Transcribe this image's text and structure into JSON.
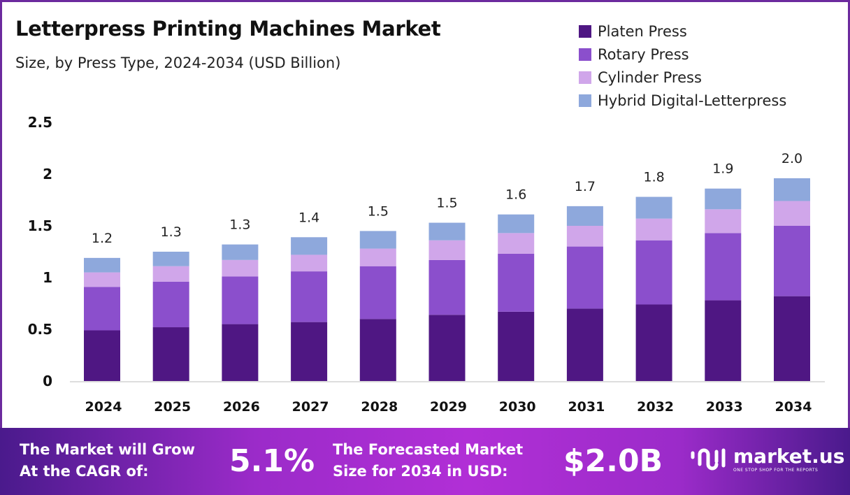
{
  "chart_data": {
    "type": "bar",
    "stacked": true,
    "title": "Letterpress Printing Machines Market",
    "subtitle": "Size, by Press Type, 2024-2034 (USD Billion)",
    "categories": [
      "2024",
      "2025",
      "2026",
      "2027",
      "2028",
      "2029",
      "2030",
      "2031",
      "2032",
      "2033",
      "2034"
    ],
    "series": [
      {
        "name": "Platen Press",
        "color": "#4f1783",
        "values": [
          0.49,
          0.52,
          0.55,
          0.57,
          0.6,
          0.64,
          0.67,
          0.7,
          0.74,
          0.78,
          0.82
        ]
      },
      {
        "name": "Rotary Press",
        "color": "#8b4fcc",
        "values": [
          0.42,
          0.44,
          0.46,
          0.49,
          0.51,
          0.53,
          0.56,
          0.6,
          0.62,
          0.65,
          0.68
        ]
      },
      {
        "name": "Cylinder Press",
        "color": "#d0a6ea",
        "values": [
          0.14,
          0.15,
          0.16,
          0.16,
          0.17,
          0.19,
          0.2,
          0.2,
          0.21,
          0.23,
          0.24
        ]
      },
      {
        "name": "Hybrid Digital-Letterpress",
        "color": "#8ea8dc",
        "values": [
          0.14,
          0.14,
          0.15,
          0.17,
          0.17,
          0.17,
          0.18,
          0.19,
          0.21,
          0.2,
          0.22
        ]
      }
    ],
    "totals": [
      "1.2",
      "1.3",
      "1.3",
      "1.4",
      "1.5",
      "1.5",
      "1.6",
      "1.7",
      "1.8",
      "1.9",
      "2.0"
    ],
    "yticks": [
      "0",
      "0.5",
      "1",
      "1.5",
      "2",
      "2.5"
    ],
    "ylim": [
      0,
      2.5
    ],
    "grid": false,
    "legend": "top-right"
  },
  "banner": {
    "cagr_label_1": "The Market will Grow",
    "cagr_label_2": "At the CAGR of:",
    "cagr_value": "5.1%",
    "forecast_label_1": "The Forecasted Market",
    "forecast_label_2": "Size for 2034 in USD:",
    "forecast_value": "$2.0B",
    "logo_name": "market.us",
    "logo_tagline": "ONE STOP SHOP FOR THE REPORTS"
  }
}
